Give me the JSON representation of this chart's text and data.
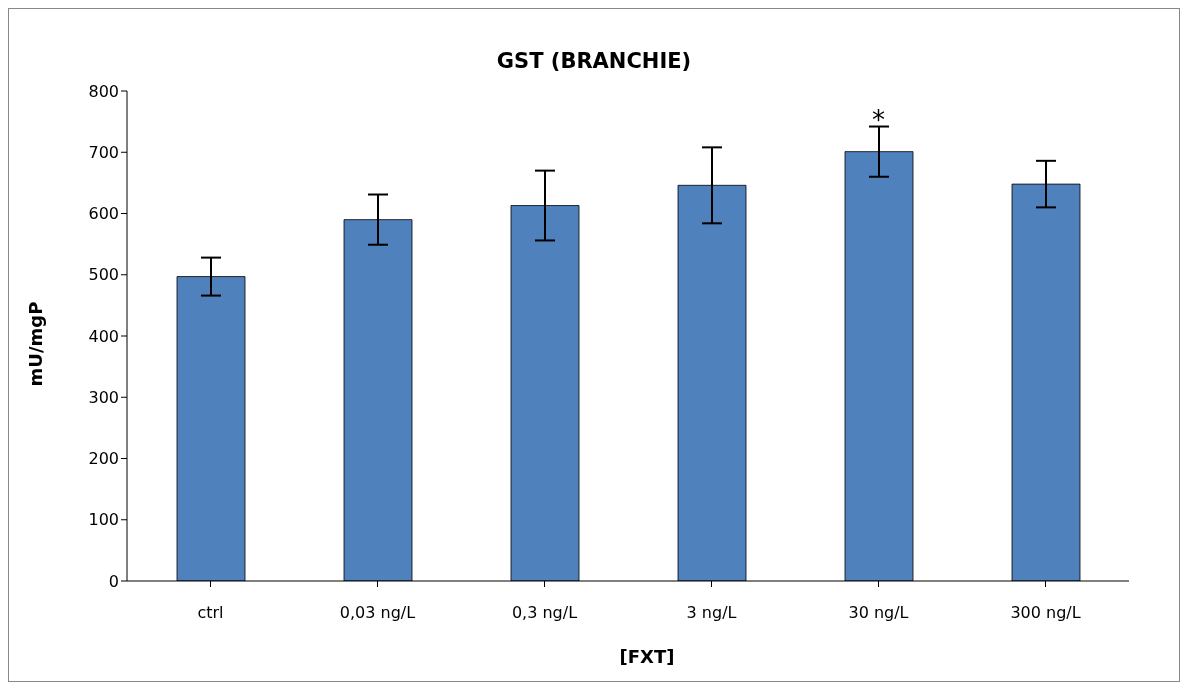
{
  "chart_data": {
    "type": "bar",
    "title": "GST (BRANCHIE)",
    "xlabel": "[FXT]",
    "ylabel": "mU/mgP",
    "categories": [
      "ctrl",
      "0,03 ng/L",
      "0,3 ng/L",
      "3 ng/L",
      "30 ng/L",
      "300 ng/L"
    ],
    "values": [
      497,
      590,
      613,
      646,
      701,
      648
    ],
    "errors": [
      31,
      41,
      57,
      62,
      41,
      38
    ],
    "color": "#4f81bd",
    "ylim": [
      0,
      800
    ],
    "yticks": [
      0,
      100,
      200,
      300,
      400,
      500,
      600,
      700,
      800
    ],
    "grid": false,
    "legend": false,
    "annotations": [
      {
        "text": "*",
        "x": "30 ng/L",
        "y": 742
      }
    ]
  }
}
